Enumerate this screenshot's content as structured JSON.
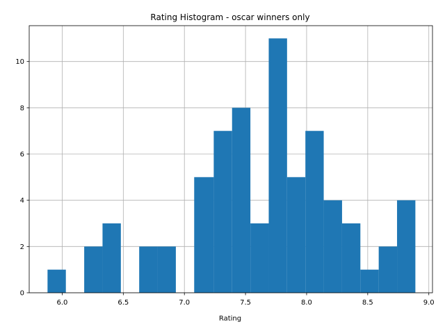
{
  "chart_data": {
    "type": "bar",
    "title": "Rating Histogram - oscar winners only",
    "xlabel": "Rating",
    "ylabel": "",
    "xlim": [
      5.73,
      9.03
    ],
    "ylim": [
      0,
      11.55
    ],
    "grid": true,
    "bar_color": "#1f77b4",
    "xticks": [
      6.0,
      6.5,
      7.0,
      7.5,
      8.0,
      8.5,
      9.0
    ],
    "xtick_labels": [
      "6.0",
      "6.5",
      "7.0",
      "7.5",
      "8.0",
      "8.5",
      "9.0"
    ],
    "yticks": [
      0,
      2,
      4,
      6,
      8,
      10
    ],
    "ytick_labels": [
      "0",
      "2",
      "4",
      "6",
      "8",
      "10"
    ],
    "bins": [
      {
        "start": 5.88,
        "end": 6.03,
        "count": 1
      },
      {
        "start": 6.03,
        "end": 6.18,
        "count": 0
      },
      {
        "start": 6.18,
        "end": 6.33,
        "count": 2
      },
      {
        "start": 6.33,
        "end": 6.48,
        "count": 3
      },
      {
        "start": 6.48,
        "end": 6.63,
        "count": 0
      },
      {
        "start": 6.63,
        "end": 6.78,
        "count": 2
      },
      {
        "start": 6.78,
        "end": 6.93,
        "count": 2
      },
      {
        "start": 6.93,
        "end": 7.08,
        "count": 0
      },
      {
        "start": 7.08,
        "end": 7.24,
        "count": 5
      },
      {
        "start": 7.24,
        "end": 7.39,
        "count": 7
      },
      {
        "start": 7.39,
        "end": 7.54,
        "count": 8
      },
      {
        "start": 7.54,
        "end": 7.69,
        "count": 3
      },
      {
        "start": 7.69,
        "end": 7.84,
        "count": 11
      },
      {
        "start": 7.84,
        "end": 7.99,
        "count": 5
      },
      {
        "start": 7.99,
        "end": 8.14,
        "count": 7
      },
      {
        "start": 8.14,
        "end": 8.29,
        "count": 4
      },
      {
        "start": 8.29,
        "end": 8.44,
        "count": 3
      },
      {
        "start": 8.44,
        "end": 8.59,
        "count": 1
      },
      {
        "start": 8.59,
        "end": 8.74,
        "count": 2
      },
      {
        "start": 8.74,
        "end": 8.89,
        "count": 4
      }
    ]
  }
}
